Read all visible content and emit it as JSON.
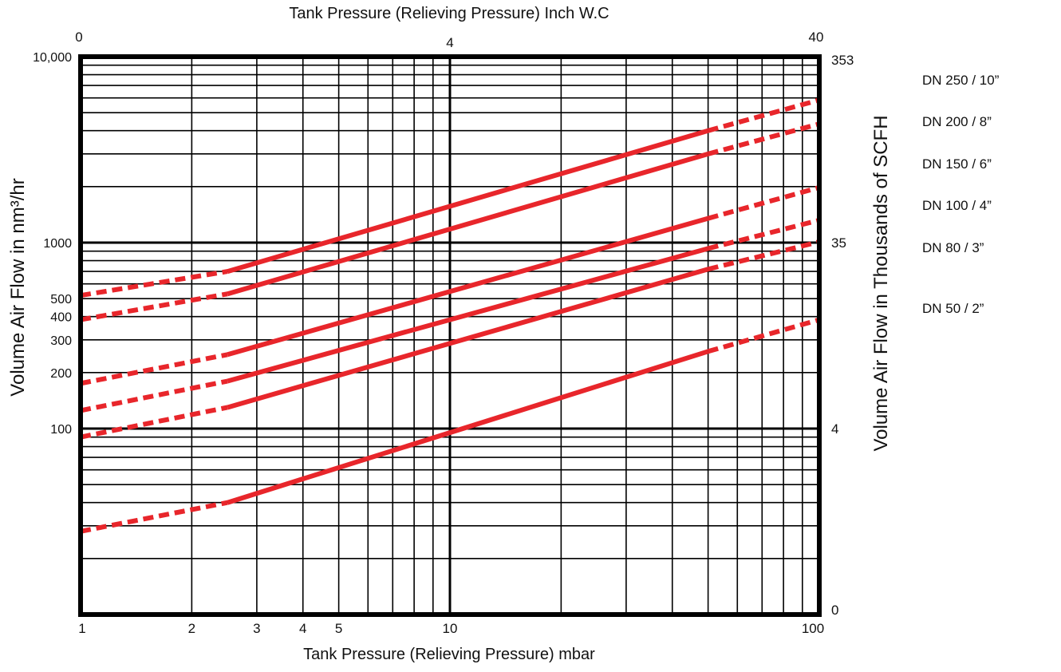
{
  "chart_data": {
    "type": "line",
    "title_top": "Tank Pressure (Relieving Pressure) Inch W.C",
    "xlabel": "Tank Pressure (Relieving Pressure) mbar",
    "ylabel": "Volume Air Flow in nm³/hr",
    "ylabel_right": "Volume Air Flow in Thousands of SCFH",
    "x_scale": "log",
    "y_scale": "log",
    "xlim": [
      1,
      100
    ],
    "ylim": [
      10,
      10000
    ],
    "grid": true,
    "x_ticks_bottom": [
      {
        "v": 1,
        "label": "1"
      },
      {
        "v": 2,
        "label": "2"
      },
      {
        "v": 3,
        "label": "3"
      },
      {
        "v": 4,
        "label": "4"
      },
      {
        "v": 5,
        "label": "5"
      },
      {
        "v": 10,
        "label": "10"
      },
      {
        "v": 100,
        "label": "100"
      }
    ],
    "x_ticks_top": [
      {
        "v": 1,
        "label": "0"
      },
      {
        "v": 10,
        "label": "4"
      },
      {
        "v": 100,
        "label": "40"
      }
    ],
    "y_ticks_left": [
      {
        "v": 10000,
        "label": "10,000"
      },
      {
        "v": 1000,
        "label": "1000"
      },
      {
        "v": 500,
        "label": "500"
      },
      {
        "v": 400,
        "label": "400"
      },
      {
        "v": 300,
        "label": "300"
      },
      {
        "v": 200,
        "label": "200"
      },
      {
        "v": 100,
        "label": "100"
      }
    ],
    "y_ticks_right": [
      {
        "v": 10000,
        "label": "353"
      },
      {
        "v": 1000,
        "label": "35"
      },
      {
        "v": 100,
        "label": "4"
      },
      {
        "v": 10,
        "label": "0"
      }
    ],
    "legend_position": "right",
    "series": [
      {
        "name": "DN 250 / 10”",
        "color": "#e8262b",
        "x": [
          1,
          2.5,
          50,
          100
        ],
        "y": [
          520,
          700,
          4000,
          5850
        ],
        "solid_from": 2.5,
        "solid_to": 50
      },
      {
        "name": "DN 200 / 8”",
        "color": "#e8262b",
        "x": [
          1,
          2.5,
          50,
          100
        ],
        "y": [
          385,
          530,
          3000,
          4350
        ],
        "solid_from": 2.5,
        "solid_to": 50
      },
      {
        "name": "DN 150 / 6”",
        "color": "#e8262b",
        "x": [
          1,
          2.5,
          50,
          100
        ],
        "y": [
          175,
          250,
          1350,
          1980
        ],
        "solid_from": 2.5,
        "solid_to": 50
      },
      {
        "name": "DN 100 / 4”",
        "color": "#e8262b",
        "x": [
          1,
          2.5,
          50,
          100
        ],
        "y": [
          125,
          180,
          930,
          1320
        ],
        "solid_from": 2.5,
        "solid_to": 50
      },
      {
        "name": "DN 80 / 3”",
        "color": "#e8262b",
        "x": [
          1,
          2.5,
          50,
          100
        ],
        "y": [
          90,
          130,
          720,
          1010
        ],
        "solid_from": 2.5,
        "solid_to": 50
      },
      {
        "name": "DN 50 / 2”",
        "color": "#e8262b",
        "x": [
          1,
          2.5,
          50,
          100
        ],
        "y": [
          28,
          40,
          260,
          385
        ],
        "solid_from": 2.5,
        "solid_to": 50
      }
    ]
  }
}
